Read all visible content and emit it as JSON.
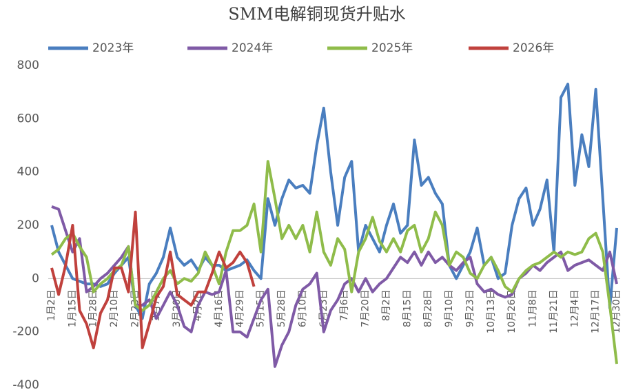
{
  "chart_data": {
    "type": "line",
    "title": "SMM电解铜现货升贴水",
    "categories": [
      "1月2日",
      null,
      null,
      "1月15日",
      null,
      null,
      "1月28日",
      null,
      null,
      "2月10日",
      null,
      null,
      "2月23日",
      null,
      null,
      "3月7日",
      null,
      null,
      "3月20日",
      null,
      null,
      "4月2日",
      null,
      null,
      "4月16日",
      null,
      null,
      "4月29日",
      null,
      null,
      "5月15日",
      null,
      null,
      "5月28日",
      null,
      null,
      "6月10日",
      null,
      null,
      "6月23日",
      null,
      null,
      "7月6日",
      null,
      null,
      "7月20日",
      null,
      null,
      "8月2日",
      null,
      null,
      "8月15日",
      null,
      null,
      "8月28日",
      null,
      null,
      "9月10日",
      null,
      null,
      "9月23日",
      null,
      null,
      "10月13日",
      null,
      null,
      "10月26日",
      null,
      null,
      "11月8日",
      null,
      null,
      "11月21日",
      null,
      null,
      "12月4日",
      null,
      null,
      "12月17日",
      null,
      null,
      "12月30日"
    ],
    "series": [
      {
        "name": "2023年",
        "color": "#4a7ebf",
        "values": [
          200,
          100,
          50,
          0,
          -10,
          -20,
          -20,
          -30,
          -20,
          20,
          50,
          80,
          -100,
          -150,
          -20,
          20,
          80,
          190,
          80,
          50,
          70,
          30,
          80,
          50,
          50,
          30,
          40,
          50,
          70,
          30,
          0,
          300,
          200,
          300,
          370,
          340,
          350,
          320,
          500,
          640,
          400,
          200,
          380,
          440,
          100,
          200,
          150,
          100,
          200,
          280,
          170,
          200,
          520,
          350,
          380,
          320,
          280,
          50,
          0,
          50,
          100,
          190,
          50,
          80,
          0,
          20,
          200,
          300,
          340,
          200,
          260,
          370,
          100,
          680,
          730,
          350,
          540,
          420,
          710,
          300,
          -110,
          190
        ]
      },
      {
        "name": "2024年",
        "color": "#7f5aa6",
        "values": [
          270,
          260,
          180,
          100,
          150,
          -50,
          -30,
          0,
          20,
          50,
          80,
          120,
          -100,
          -100,
          -80,
          -150,
          -100,
          -50,
          -100,
          -180,
          -200,
          -100,
          -50,
          -60,
          -50,
          30,
          -200,
          -200,
          -220,
          -150,
          -80,
          -40,
          -330,
          -250,
          -200,
          -100,
          -40,
          -20,
          20,
          -200,
          -120,
          -80,
          -20,
          0,
          -50,
          0,
          -50,
          -20,
          0,
          40,
          80,
          60,
          100,
          50,
          100,
          60,
          80,
          50,
          30,
          60,
          80,
          -20,
          -50,
          -40,
          -60,
          -70,
          -60,
          0,
          20,
          50,
          30,
          60,
          80,
          100,
          30,
          50,
          60,
          70,
          50,
          30,
          100,
          -20
        ]
      },
      {
        "name": "2025年",
        "color": "#8fbc4a",
        "values": [
          90,
          110,
          150,
          170,
          120,
          80,
          -50,
          -20,
          0,
          30,
          50,
          120,
          -100,
          -120,
          -100,
          -50,
          0,
          30,
          -20,
          0,
          -10,
          20,
          100,
          50,
          -20,
          100,
          180,
          180,
          200,
          280,
          100,
          440,
          300,
          150,
          200,
          150,
          200,
          100,
          250,
          100,
          50,
          150,
          110,
          -50,
          100,
          150,
          230,
          140,
          100,
          150,
          100,
          180,
          200,
          100,
          150,
          250,
          200,
          50,
          100,
          80,
          20,
          0,
          50,
          80,
          30,
          -30,
          -50,
          0,
          30,
          50,
          60,
          80,
          100,
          80,
          100,
          90,
          100,
          150,
          170,
          100,
          -100,
          -320
        ]
      },
      {
        "name": "2026年",
        "color": "#c0413d",
        "values": [
          40,
          -60,
          50,
          200,
          -120,
          -170,
          -260,
          -130,
          -80,
          40,
          40,
          -50,
          250,
          -260,
          -170,
          -70,
          -30,
          100,
          -60,
          -80,
          -100,
          -50,
          -50,
          20,
          100,
          40,
          60,
          100,
          60,
          -30,
          null,
          null,
          null,
          null,
          null,
          null,
          null,
          null,
          null,
          null,
          null,
          null,
          null,
          null,
          null,
          null,
          null,
          null,
          null,
          null,
          null,
          null,
          null,
          null,
          null,
          null,
          null,
          null,
          null,
          null,
          null,
          null,
          null,
          null,
          null,
          null,
          null,
          null,
          null,
          null,
          null,
          null,
          null,
          null,
          null,
          null,
          null,
          null,
          null,
          null,
          null,
          null
        ]
      }
    ],
    "ylim": [
      -400,
      800
    ],
    "yticks": [
      -400,
      -200,
      0,
      200,
      400,
      600,
      800
    ],
    "grid": false,
    "legend": "top"
  }
}
